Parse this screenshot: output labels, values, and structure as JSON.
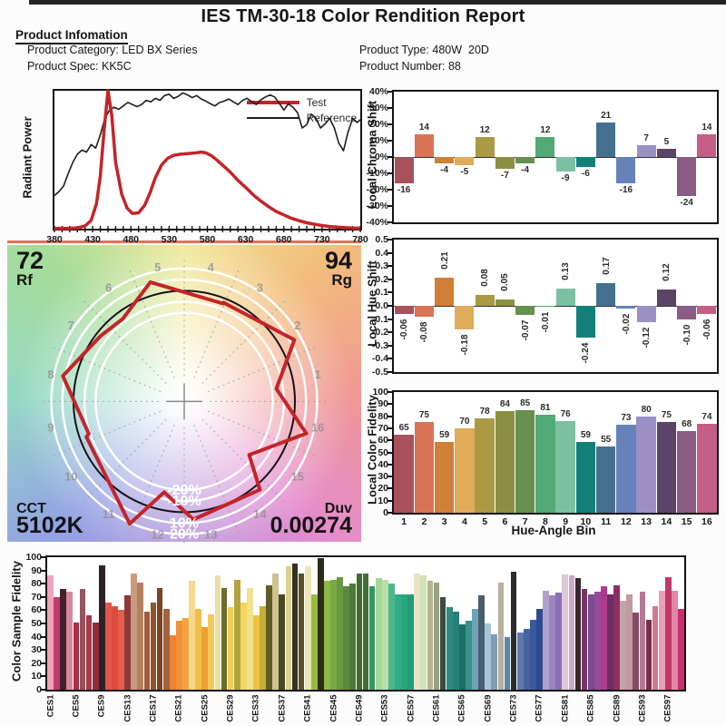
{
  "report": {
    "title": "IES TM-30-18 Color Rendition Report",
    "section_product": "Product Infomation",
    "product": {
      "category_label": "Product Category:",
      "category_value": "LED BX Series",
      "spec_label": "Product Spec:",
      "spec_value": "KK5C",
      "type_label": "Product Type:",
      "type_value": "480W  20D",
      "number_label": "Product Number:",
      "number_value": "88"
    }
  },
  "colors": {
    "test_red": "#c42428",
    "reference_black": "#1d1d1d",
    "axis_black": "#141414",
    "ring_white": "#ffffff",
    "bin_number_gray": "#8f8f8f",
    "hue_bin_palette": [
      "#a8515c",
      "#d97356",
      "#d07f36",
      "#e0ac59",
      "#ab9a45",
      "#8b8f42",
      "#66904d",
      "#52aa76",
      "#7cc0a4",
      "#12807a",
      "#45718f",
      "#6781ba",
      "#9a90c6",
      "#5c4468",
      "#8a5c84",
      "#c55e86"
    ]
  },
  "chart_data": [
    {
      "id": "spd",
      "type": "line",
      "title": "",
      "xlabel": "",
      "ylabel": "Radiant Power",
      "xlim": [
        380,
        780
      ],
      "ylim": [
        0,
        1
      ],
      "x_ticks": [
        380,
        430,
        480,
        530,
        580,
        630,
        680,
        730,
        780
      ],
      "legend": [
        {
          "label": "Test",
          "color": "#c42428"
        },
        {
          "label": "Reference",
          "color": "#1d1d1d"
        }
      ],
      "series": [
        {
          "name": "Test",
          "color": "#c42428",
          "width": 3.5,
          "points": [
            [
              380,
              0.002
            ],
            [
              400,
              0.003
            ],
            [
              410,
              0.006
            ],
            [
              420,
              0.02
            ],
            [
              428,
              0.06
            ],
            [
              435,
              0.18
            ],
            [
              440,
              0.38
            ],
            [
              445,
              0.72
            ],
            [
              450,
              1.0
            ],
            [
              455,
              0.82
            ],
            [
              460,
              0.48
            ],
            [
              468,
              0.25
            ],
            [
              475,
              0.15
            ],
            [
              482,
              0.11
            ],
            [
              490,
              0.115
            ],
            [
              498,
              0.17
            ],
            [
              505,
              0.26
            ],
            [
              512,
              0.37
            ],
            [
              520,
              0.46
            ],
            [
              528,
              0.51
            ],
            [
              535,
              0.53
            ],
            [
              545,
              0.54
            ],
            [
              555,
              0.545
            ],
            [
              565,
              0.55
            ],
            [
              572,
              0.555
            ],
            [
              578,
              0.55
            ],
            [
              585,
              0.53
            ],
            [
              592,
              0.5
            ],
            [
              600,
              0.46
            ],
            [
              610,
              0.41
            ],
            [
              620,
              0.35
            ],
            [
              630,
              0.3
            ],
            [
              640,
              0.245
            ],
            [
              650,
              0.2
            ],
            [
              660,
              0.16
            ],
            [
              670,
              0.125
            ],
            [
              680,
              0.1
            ],
            [
              690,
              0.075
            ],
            [
              700,
              0.058
            ],
            [
              710,
              0.043
            ],
            [
              720,
              0.032
            ],
            [
              730,
              0.023
            ],
            [
              740,
              0.016
            ],
            [
              750,
              0.011
            ],
            [
              760,
              0.007
            ],
            [
              770,
              0.005
            ],
            [
              780,
              0.003
            ]
          ]
        },
        {
          "name": "Reference",
          "color": "#1d1d1d",
          "width": 1.6,
          "points": [
            [
              380,
              0.24
            ],
            [
              386,
              0.27
            ],
            [
              392,
              0.31
            ],
            [
              398,
              0.4
            ],
            [
              404,
              0.48
            ],
            [
              410,
              0.54
            ],
            [
              416,
              0.57
            ],
            [
              422,
              0.555
            ],
            [
              428,
              0.61
            ],
            [
              434,
              0.585
            ],
            [
              440,
              0.68
            ],
            [
              446,
              0.8
            ],
            [
              452,
              0.86
            ],
            [
              458,
              0.88
            ],
            [
              464,
              0.865
            ],
            [
              470,
              0.89
            ],
            [
              476,
              0.915
            ],
            [
              482,
              0.9
            ],
            [
              488,
              0.885
            ],
            [
              494,
              0.9
            ],
            [
              500,
              0.93
            ],
            [
              506,
              0.92
            ],
            [
              512,
              0.945
            ],
            [
              518,
              0.93
            ],
            [
              524,
              0.965
            ],
            [
              530,
              0.975
            ],
            [
              536,
              0.945
            ],
            [
              542,
              0.96
            ],
            [
              548,
              0.985
            ],
            [
              554,
              0.97
            ],
            [
              560,
              0.95
            ],
            [
              566,
              0.965
            ],
            [
              572,
              0.94
            ],
            [
              578,
              0.925
            ],
            [
              584,
              0.905
            ],
            [
              590,
              0.89
            ],
            [
              596,
              0.915
            ],
            [
              602,
              0.925
            ],
            [
              608,
              0.94
            ],
            [
              614,
              0.92
            ],
            [
              620,
              0.9
            ],
            [
              626,
              0.93
            ],
            [
              632,
              0.945
            ],
            [
              638,
              0.92
            ],
            [
              644,
              0.9
            ],
            [
              650,
              0.935
            ],
            [
              656,
              0.955
            ],
            [
              662,
              0.97
            ],
            [
              668,
              0.955
            ],
            [
              674,
              0.91
            ],
            [
              680,
              0.86
            ],
            [
              686,
              0.905
            ],
            [
              692,
              0.88
            ],
            [
              698,
              0.84
            ],
            [
              704,
              0.73
            ],
            [
              710,
              0.755
            ],
            [
              716,
              0.83
            ],
            [
              722,
              0.8
            ],
            [
              728,
              0.73
            ],
            [
              734,
              0.76
            ],
            [
              740,
              0.8
            ],
            [
              746,
              0.73
            ],
            [
              752,
              0.62
            ],
            [
              758,
              0.565
            ],
            [
              764,
              0.7
            ],
            [
              770,
              0.8
            ],
            [
              776,
              0.77
            ],
            [
              780,
              0.79
            ]
          ]
        }
      ]
    },
    {
      "id": "chroma_shift",
      "type": "bar",
      "ylabel": "Local Chroma Shift",
      "ylim": [
        -40,
        40
      ],
      "y_ticks": [
        40,
        30,
        20,
        10,
        0,
        -10,
        -20,
        -30,
        -40
      ],
      "y_tick_suffix": "%",
      "values": [
        -16,
        14,
        -4,
        -5,
        12,
        -7,
        -4,
        12,
        -9,
        -6,
        21,
        -16,
        7,
        5,
        -24,
        14
      ]
    },
    {
      "id": "hue_shift",
      "type": "bar",
      "ylabel": "Local Hue Shift",
      "ylim": [
        -0.5,
        0.5
      ],
      "y_ticks": [
        0.5,
        0.4,
        0.3,
        0.2,
        0.1,
        0.0,
        -0.1,
        -0.2,
        -0.3,
        -0.4,
        -0.5
      ],
      "values": [
        -0.06,
        -0.08,
        0.21,
        -0.18,
        0.08,
        0.05,
        -0.07,
        -0.01,
        0.13,
        -0.24,
        0.17,
        -0.02,
        -0.12,
        0.12,
        -0.1,
        -0.06
      ]
    },
    {
      "id": "local_color_fidelity",
      "type": "bar",
      "ylabel": "Local Color Fidelity",
      "xlabel": "Hue-Angle Bin",
      "ylim": [
        0,
        100
      ],
      "y_ticks": [
        100,
        90,
        80,
        70,
        60,
        50,
        40,
        30,
        20,
        10,
        0
      ],
      "categories": [
        "1",
        "2",
        "3",
        "4",
        "5",
        "6",
        "7",
        "8",
        "9",
        "10",
        "11",
        "12",
        "13",
        "14",
        "15",
        "16"
      ],
      "values": [
        65,
        75,
        59,
        70,
        78,
        84,
        85,
        81,
        76,
        59,
        55,
        73,
        80,
        75,
        68,
        74
      ]
    },
    {
      "id": "color_vector_graphic",
      "type": "polar",
      "rf": 72,
      "rf_label": "Rf",
      "rg": 94,
      "rg_label": "Rg",
      "cct_label": "CCT",
      "cct_value": "5102K",
      "duv_label": "Duv",
      "duv_value": "0.00274",
      "ring_labels": [
        "-20%",
        "-10%",
        "10%",
        "20%"
      ],
      "ring_scales": [
        0.8,
        0.9,
        1.1,
        1.2
      ],
      "bin_numbers": [
        1,
        2,
        3,
        4,
        5,
        6,
        7,
        8,
        9,
        10,
        11,
        12,
        13,
        14,
        15,
        16
      ]
    },
    {
      "id": "color_sample_fidelity",
      "type": "bar",
      "ylabel": "Color Sample Fidelity",
      "ylim": [
        0,
        100
      ],
      "y_ticks": [
        100,
        90,
        80,
        70,
        60,
        50,
        40,
        30,
        20,
        10,
        0
      ],
      "label_prefix": "CES",
      "label_every": 4,
      "values": [
        86,
        70,
        76,
        74,
        51,
        76,
        56,
        51,
        94,
        66,
        63,
        60,
        71,
        88,
        81,
        59,
        66,
        77,
        61,
        41,
        52,
        54,
        82,
        61,
        47,
        57,
        86,
        77,
        62,
        83,
        66,
        77,
        56,
        63,
        79,
        88,
        72,
        93,
        95,
        88,
        93,
        72,
        99,
        82,
        83,
        85,
        78,
        80,
        88,
        88,
        78,
        84,
        83,
        80,
        72,
        72,
        72,
        88,
        86,
        82,
        81,
        70,
        62,
        59,
        49,
        52,
        61,
        71,
        50,
        42,
        81,
        40,
        89,
        43,
        46,
        53,
        61,
        75,
        71,
        73,
        87,
        86,
        84,
        76,
        72,
        74,
        78,
        72,
        79,
        67,
        72,
        58,
        74,
        53,
        63,
        75,
        85,
        75,
        61
      ],
      "colors": [
        "#efa3b8",
        "#c23a6e",
        "#43222d",
        "#d8879a",
        "#ae2e46",
        "#96525e",
        "#a53a48",
        "#8e2d3f",
        "#2e2227",
        "#e25649",
        "#dc4c3f",
        "#e5604b",
        "#8f3a39",
        "#c89b7d",
        "#b4805d",
        "#a05c3a",
        "#8f5530",
        "#794427",
        "#a2633c",
        "#ef8230",
        "#f29139",
        "#f5a342",
        "#f6d88a",
        "#f0bf4b",
        "#ee9f30",
        "#f2c950",
        "#ebdfa6",
        "#6f6b2f",
        "#f1cf55",
        "#b3a33f",
        "#f4d55f",
        "#f1e18d",
        "#edc33e",
        "#c8ac34",
        "#5f5c28",
        "#cfc28e",
        "#4a4724",
        "#dcd18e",
        "#35321d",
        "#555329",
        "#ebe5b7",
        "#96bb3e",
        "#2c2a19",
        "#8cb945",
        "#79a743",
        "#68983f",
        "#5a8b3a",
        "#4d7b35",
        "#3f6d31",
        "#446e34",
        "#2f9a5c",
        "#a7d797",
        "#b7dfa7",
        "#4db68a",
        "#2fae85",
        "#28a57d",
        "#239b77",
        "#e9e3c3",
        "#d3e3b3",
        "#b7b593",
        "#99a186",
        "#3e4940",
        "#2e8b81",
        "#277f79",
        "#1c6e67",
        "#389389",
        "#6fa2b7",
        "#475f6e",
        "#a8c5d7",
        "#7e9bb9",
        "#b8af9f",
        "#5a87a7",
        "#2b2b30",
        "#5a7aaf",
        "#47629e",
        "#3a5a9e",
        "#2f4a8e",
        "#b0a0cb",
        "#9a85be",
        "#8a70b1",
        "#dfc7d7",
        "#cea7c3",
        "#34272d",
        "#793467",
        "#7a498e",
        "#994a99",
        "#b03a8e",
        "#6e2e61",
        "#8e2e69",
        "#c3a3ab",
        "#c1999f",
        "#894a67",
        "#b47995",
        "#792e49",
        "#cb7999",
        "#e79fb4",
        "#c13967",
        "#df87a4",
        "#cb2e6e"
      ]
    }
  ]
}
